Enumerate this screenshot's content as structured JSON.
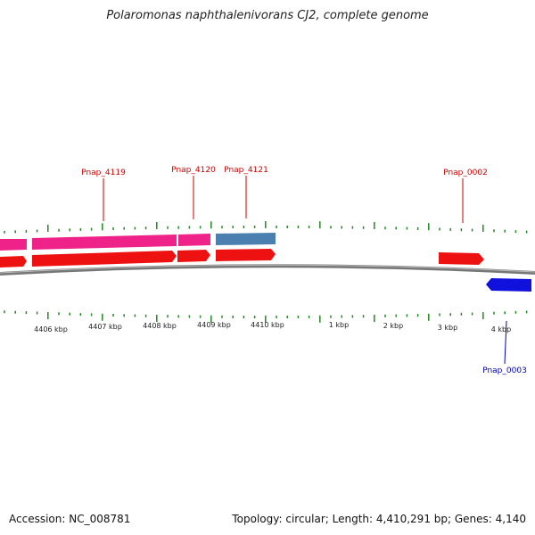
{
  "title": "Polaromonas naphthalenivorans CJ2, complete genome",
  "footer": {
    "accession": "Accession: NC_008781",
    "summary": "Topology: circular; Length: 4,410,291 bp; Genes: 4,140"
  },
  "colors": {
    "forward_gene": "#ee1111",
    "forward_gene_alt": "#ee2288",
    "forward_gene_selected": "#4a7fb0",
    "reverse_gene": "#1111dd",
    "tick": "#228822",
    "backbone": "#888888",
    "label_forward": "#cc0000",
    "label_reverse": "#0000aa"
  },
  "scale_labels": [
    "4406 kbp",
    "4407 kbp",
    "4408 kbp",
    "4409 kbp",
    "4410 kbp",
    "1 kbp",
    "2 kbp",
    "3 kbp",
    "4 kbp"
  ],
  "gene_labels": [
    {
      "name": "Pnap_4119",
      "strand": "forward"
    },
    {
      "name": "Pnap_4120",
      "strand": "forward"
    },
    {
      "name": "Pnap_4121",
      "strand": "forward"
    },
    {
      "name": "Pnap_0002",
      "strand": "forward"
    },
    {
      "name": "Pnap_0003",
      "strand": "reverse"
    }
  ]
}
